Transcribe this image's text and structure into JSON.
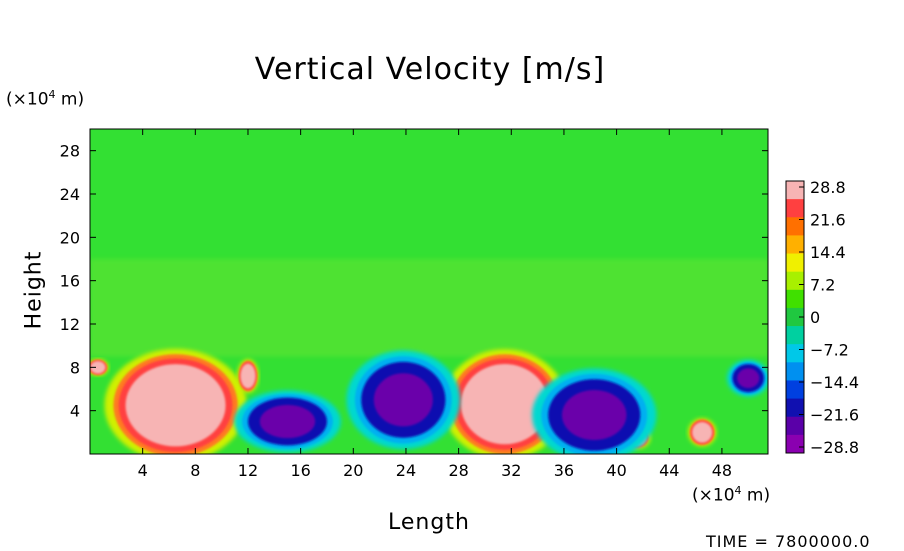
{
  "chart_data": {
    "type": "heatmap",
    "title": "Vertical Velocity [m/s]",
    "xlabel": "Length",
    "ylabel": "Height",
    "x_unit": "(×10⁴ m)",
    "y_unit": "(×10⁴ m)",
    "xlim": [
      0,
      51.5
    ],
    "ylim": [
      0,
      30
    ],
    "x_ticks": [
      4,
      8,
      12,
      16,
      20,
      24,
      28,
      32,
      36,
      40,
      44,
      48
    ],
    "y_ticks": [
      4,
      8,
      12,
      16,
      20,
      24,
      28
    ],
    "colorbar": {
      "ticks": [
        "28.8",
        "21.6",
        "14.4",
        "7.2",
        "0",
        "−7.2",
        "−14.4",
        "−21.6",
        "−28.8"
      ],
      "colors": [
        "#f7b4b4",
        "#ff4040",
        "#ff7000",
        "#ffb000",
        "#f0f000",
        "#a8f000",
        "#40e000",
        "#20c840",
        "#00d0a0",
        "#00c8e8",
        "#0090f0",
        "#0040e0",
        "#1010b0",
        "#5a00a8",
        "#8a00b0"
      ]
    },
    "background_color": "#33e033",
    "features": [
      {
        "kind": "updraft",
        "x": 6.5,
        "y": 4.5,
        "rx": 4.0,
        "ry": 4.0
      },
      {
        "kind": "updraft",
        "x": 31.5,
        "y": 4.6,
        "rx": 3.5,
        "ry": 3.9
      },
      {
        "kind": "updraft",
        "x": 41.5,
        "y": 1.5,
        "rx": 0.8,
        "ry": 0.8
      },
      {
        "kind": "updraft",
        "x": 46.5,
        "y": 2.0,
        "rx": 0.8,
        "ry": 1.0
      },
      {
        "kind": "updraft",
        "x": 12.0,
        "y": 7.2,
        "rx": 0.6,
        "ry": 1.2
      },
      {
        "kind": "updraft",
        "x": 0.6,
        "y": 8.0,
        "rx": 0.6,
        "ry": 0.6
      },
      {
        "kind": "downdraft",
        "x": 15.0,
        "y": 3.0,
        "rx": 3.0,
        "ry": 2.2
      },
      {
        "kind": "downdraft",
        "x": 23.8,
        "y": 5.0,
        "rx": 3.2,
        "ry": 3.5
      },
      {
        "kind": "downdraft",
        "x": 38.3,
        "y": 3.6,
        "rx": 3.5,
        "ry": 3.3
      },
      {
        "kind": "downdraft",
        "x": 50.0,
        "y": 7.0,
        "rx": 1.2,
        "ry": 1.3
      }
    ]
  },
  "time_label": "TIME = 7800000.0"
}
